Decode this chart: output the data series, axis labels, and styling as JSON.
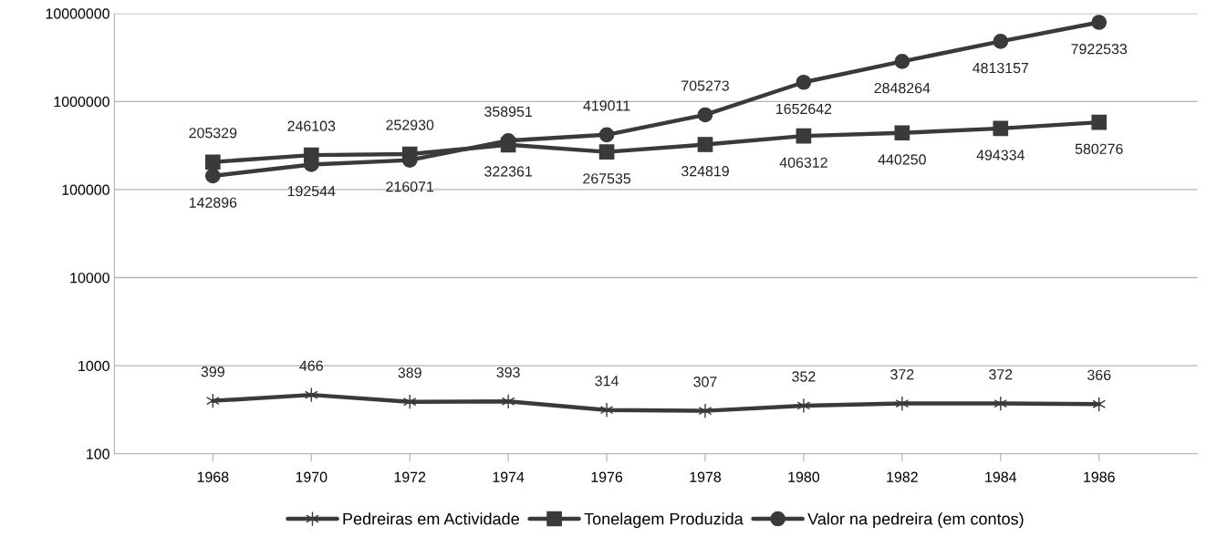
{
  "chart_data": {
    "type": "line",
    "categories": [
      "1968",
      "1970",
      "1972",
      "1974",
      "1976",
      "1978",
      "1980",
      "1982",
      "1984",
      "1986"
    ],
    "series": [
      {
        "name": "Pedreiras em Actividade",
        "color": "#3a3a3a",
        "marker": "cross",
        "values": [
          399,
          466,
          389,
          393,
          314,
          307,
          352,
          372,
          372,
          366
        ]
      },
      {
        "name": "Tonelagem Produzida",
        "color": "#3a3a3a",
        "marker": "square",
        "values": [
          205329,
          246103,
          252930,
          322361,
          267535,
          324819,
          406312,
          440250,
          494334,
          580276
        ]
      },
      {
        "name": "Valor na pedreira (em contos)",
        "color": "#3a3a3a",
        "marker": "circle",
        "values": [
          142896,
          192544,
          216071,
          358951,
          419011,
          705273,
          1652642,
          2848264,
          4813157,
          7922533
        ]
      }
    ],
    "log": "y",
    "ylim": [
      100,
      10000000
    ],
    "yticks": [
      100,
      1000,
      10000,
      100000,
      1000000,
      10000000
    ],
    "grid": "y",
    "legend": "bottom",
    "data_labels": true,
    "line_style": "solid"
  }
}
